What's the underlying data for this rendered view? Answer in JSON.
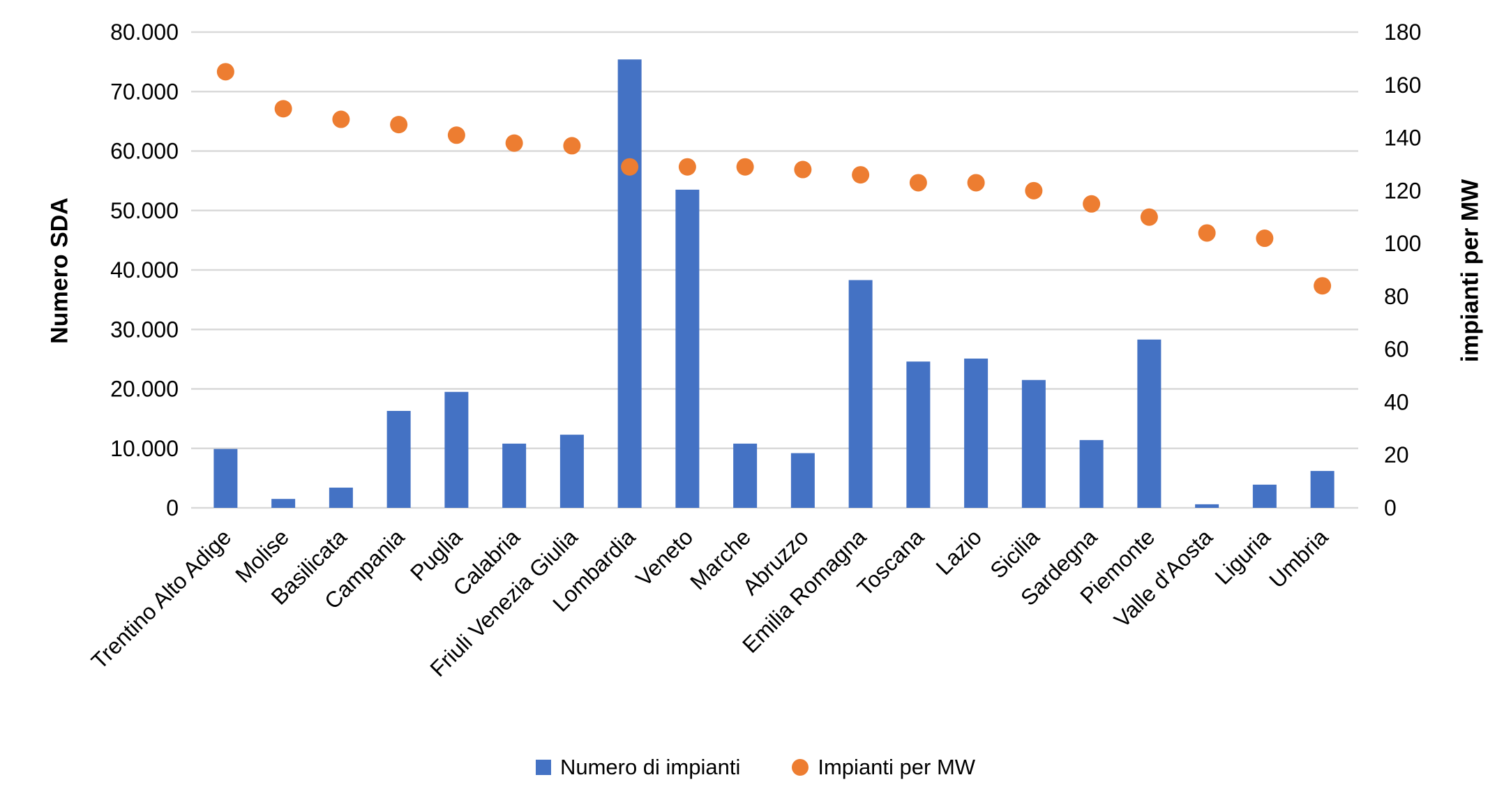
{
  "chart_data": {
    "type": "bar",
    "subtype": "combo-bar-scatter-dual-axis",
    "title": "",
    "categories": [
      "Trentino Alto Adige",
      "Molise",
      "Basilicata",
      "Campania",
      "Puglia",
      "Calabria",
      "Friuli Venezia Giulia",
      "Lombardia",
      "Veneto",
      "Marche",
      "Abruzzo",
      "Emilia Romagna",
      "Toscana",
      "Lazio",
      "Sicilia",
      "Sardegna",
      "Piemonte",
      "Valle d'Aosta",
      "Liguria",
      "Umbria"
    ],
    "series": [
      {
        "name": "Numero di impianti",
        "type": "bar",
        "axis": "left",
        "color": "#4472C4",
        "values": [
          9900,
          1500,
          3400,
          16300,
          19500,
          10800,
          12300,
          75400,
          53500,
          10800,
          9200,
          38300,
          24600,
          25100,
          21500,
          11400,
          28300,
          600,
          3900,
          6200
        ]
      },
      {
        "name": "Impianti per MW",
        "type": "scatter",
        "axis": "right",
        "color": "#ED7D31",
        "values": [
          165,
          151,
          147,
          145,
          141,
          138,
          137,
          129,
          129,
          129,
          128,
          126,
          123,
          123,
          120,
          115,
          110,
          104,
          102,
          84
        ]
      }
    ],
    "left_axis": {
      "label": "Numero SDA",
      "min": 0,
      "max": 80000,
      "step": 10000,
      "tick_labels": [
        "0",
        "10.000",
        "20.000",
        "30.000",
        "40.000",
        "50.000",
        "60.000",
        "70.000",
        "80.000"
      ]
    },
    "right_axis": {
      "label": "impianti per MW",
      "min": 0,
      "max": 180,
      "step": 20,
      "tick_labels": [
        "0",
        "20",
        "40",
        "60",
        "80",
        "100",
        "120",
        "140",
        "160",
        "180"
      ]
    },
    "grid": true,
    "gridline_color": "#D9D9D9",
    "text_color": "#000000",
    "legend_position": "bottom"
  }
}
